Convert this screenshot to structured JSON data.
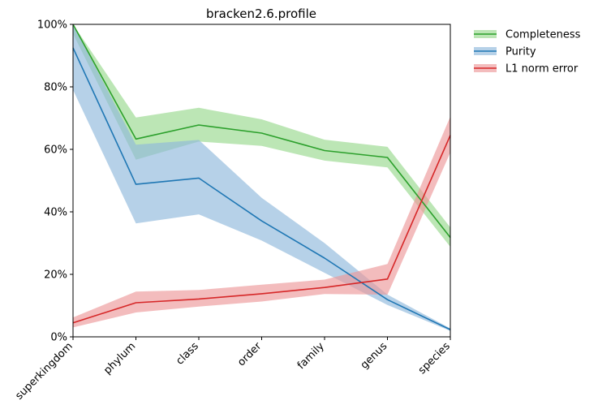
{
  "chart_data": {
    "type": "line",
    "title": "bracken2.6.profile",
    "xlabel": "",
    "ylabel": "",
    "categories": [
      "superkingdom",
      "phylum",
      "class",
      "order",
      "family",
      "genus",
      "species"
    ],
    "ylim": [
      0,
      1
    ],
    "yticks": [
      0,
      0.2,
      0.4,
      0.6,
      0.8,
      1.0
    ],
    "ytick_labels": [
      "0%",
      "20%",
      "40%",
      "60%",
      "80%",
      "100%"
    ],
    "grid": false,
    "legend_position": "outside-top-right",
    "series": [
      {
        "name": "Completeness",
        "color": "#2ca02c",
        "band_color": "#98d98e",
        "values": [
          1.0,
          0.633,
          0.678,
          0.652,
          0.596,
          0.574,
          0.318
        ],
        "upper": [
          1.0,
          0.702,
          0.733,
          0.696,
          0.631,
          0.608,
          0.35
        ],
        "lower": [
          0.97,
          0.567,
          0.625,
          0.611,
          0.564,
          0.542,
          0.288
        ]
      },
      {
        "name": "Purity",
        "color": "#1f77b4",
        "band_color": "#8fb8dc",
        "values": [
          0.925,
          0.488,
          0.508,
          0.371,
          0.252,
          0.119,
          0.023
        ],
        "upper": [
          1.0,
          0.615,
          0.63,
          0.445,
          0.3,
          0.135,
          0.027
        ],
        "lower": [
          0.79,
          0.363,
          0.392,
          0.308,
          0.205,
          0.102,
          0.019
        ]
      },
      {
        "name": "L1 norm error",
        "color": "#d62728",
        "band_color": "#ec9899",
        "values": [
          0.045,
          0.109,
          0.121,
          0.138,
          0.158,
          0.185,
          0.645
        ],
        "upper": [
          0.062,
          0.145,
          0.15,
          0.167,
          0.183,
          0.233,
          0.705
        ],
        "lower": [
          0.03,
          0.078,
          0.097,
          0.113,
          0.137,
          0.135,
          0.59
        ]
      }
    ]
  }
}
